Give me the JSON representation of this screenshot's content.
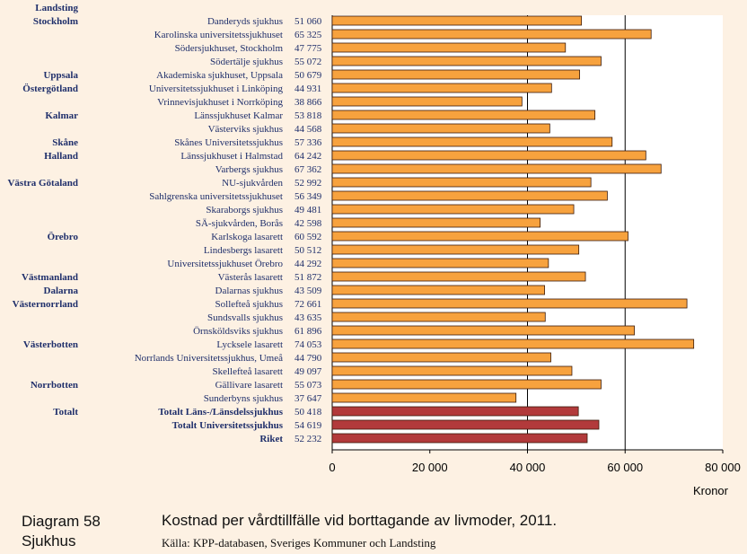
{
  "chart_data": {
    "type": "bar",
    "orientation": "horizontal",
    "group_header": "Landsting",
    "rows": [
      {
        "lan": "Stockholm",
        "label": "Danderyds sjukhus",
        "value": 51060,
        "value_label": "51 060"
      },
      {
        "lan": "",
        "label": "Karolinska universitetssjukhuset",
        "value": 65325,
        "value_label": "65 325"
      },
      {
        "lan": "",
        "label": "Södersjukhuset, Stockholm",
        "value": 47775,
        "value_label": "47 775"
      },
      {
        "lan": "",
        "label": "Södertälje sjukhus",
        "value": 55072,
        "value_label": "55 072"
      },
      {
        "lan": "Uppsala",
        "label": "Akademiska sjukhuset, Uppsala",
        "value": 50679,
        "value_label": "50 679"
      },
      {
        "lan": "Östergötland",
        "label": "Universitetssjukhuset i Linköping",
        "value": 44931,
        "value_label": "44 931"
      },
      {
        "lan": "",
        "label": "Vrinnevisjukhuset i Norrköping",
        "value": 38866,
        "value_label": "38 866"
      },
      {
        "lan": "Kalmar",
        "label": "Länssjukhuset Kalmar",
        "value": 53818,
        "value_label": "53 818"
      },
      {
        "lan": "",
        "label": "Västerviks sjukhus",
        "value": 44568,
        "value_label": "44 568"
      },
      {
        "lan": "Skåne",
        "label": "Skånes Universitetssjukhus",
        "value": 57336,
        "value_label": "57 336"
      },
      {
        "lan": "Halland",
        "label": "Länssjukhuset i Halmstad",
        "value": 64242,
        "value_label": "64 242"
      },
      {
        "lan": "",
        "label": "Varbergs sjukhus",
        "value": 67362,
        "value_label": "67 362"
      },
      {
        "lan": "Västra Götaland",
        "label": "NU-sjukvården",
        "value": 52992,
        "value_label": "52 992"
      },
      {
        "lan": "",
        "label": "Sahlgrenska universitetssjukhuset",
        "value": 56349,
        "value_label": "56 349"
      },
      {
        "lan": "",
        "label": "Skaraborgs sjukhus",
        "value": 49481,
        "value_label": "49 481"
      },
      {
        "lan": "",
        "label": "SÄ-sjukvården, Borås",
        "value": 42598,
        "value_label": "42 598"
      },
      {
        "lan": "Örebro",
        "label": "Karlskoga lasarett",
        "value": 60592,
        "value_label": "60 592"
      },
      {
        "lan": "",
        "label": "Lindesbergs lasarett",
        "value": 50512,
        "value_label": "50 512"
      },
      {
        "lan": "",
        "label": "Universitetssjukhuset Örebro",
        "value": 44292,
        "value_label": "44 292"
      },
      {
        "lan": "Västmanland",
        "label": "Västerås lasarett",
        "value": 51872,
        "value_label": "51 872"
      },
      {
        "lan": "Dalarna",
        "label": "Dalarnas sjukhus",
        "value": 43509,
        "value_label": "43 509"
      },
      {
        "lan": "Västernorrland",
        "label": "Sollefteå sjukhus",
        "value": 72661,
        "value_label": "72 661"
      },
      {
        "lan": "",
        "label": "Sundsvalls sjukhus",
        "value": 43635,
        "value_label": "43 635"
      },
      {
        "lan": "",
        "label": "Örnsköldsviks sjukhus",
        "value": 61896,
        "value_label": "61 896"
      },
      {
        "lan": "Västerbotten",
        "label": "Lycksele lasarett",
        "value": 74053,
        "value_label": "74 053"
      },
      {
        "lan": "",
        "label": "Norrlands Universitetssjukhus, Umeå",
        "value": 44790,
        "value_label": "44 790"
      },
      {
        "lan": "",
        "label": "Skellefteå lasarett",
        "value": 49097,
        "value_label": "49 097"
      },
      {
        "lan": "Norrbotten",
        "label": "Gällivare lasarett",
        "value": 55073,
        "value_label": "55 073"
      },
      {
        "lan": "",
        "label": "Sunderbyns sjukhus",
        "value": 37647,
        "value_label": "37 647"
      },
      {
        "lan": "Totalt",
        "label": "Totalt Läns-/Länsdelssjukhus",
        "value": 50418,
        "value_label": "50 418",
        "total": true
      },
      {
        "lan": "",
        "label": "Totalt Universitetssjukhus",
        "value": 54619,
        "value_label": "54 619",
        "total": true
      },
      {
        "lan": "",
        "label": "Riket",
        "value": 52232,
        "value_label": "52 232",
        "total": true
      }
    ],
    "xlim": [
      0,
      80000
    ],
    "xticks": [
      {
        "value": 0,
        "label": "0"
      },
      {
        "value": 20000,
        "label": "20 000"
      },
      {
        "value": 40000,
        "label": "40 000"
      },
      {
        "value": 60000,
        "label": "60 000"
      },
      {
        "value": 80000,
        "label": "80 000"
      }
    ],
    "gridlines": [
      40000,
      60000
    ],
    "xlabel": "Kronor",
    "colors": {
      "bar": "#f7a23e",
      "bar_total": "#b23a3b",
      "edge": "#3a1a0a",
      "plot_bg": "#ffffff",
      "page_bg": "#fdf1e3"
    }
  },
  "footer": {
    "diagram_number": "Diagram 58",
    "diagram_category": "Sjukhus",
    "title": "Kostnad per vårdtillfälle vid borttagande av livmoder, 2011.",
    "source": "Källa: KPP-databasen, Sveriges Kommuner och Landsting"
  }
}
